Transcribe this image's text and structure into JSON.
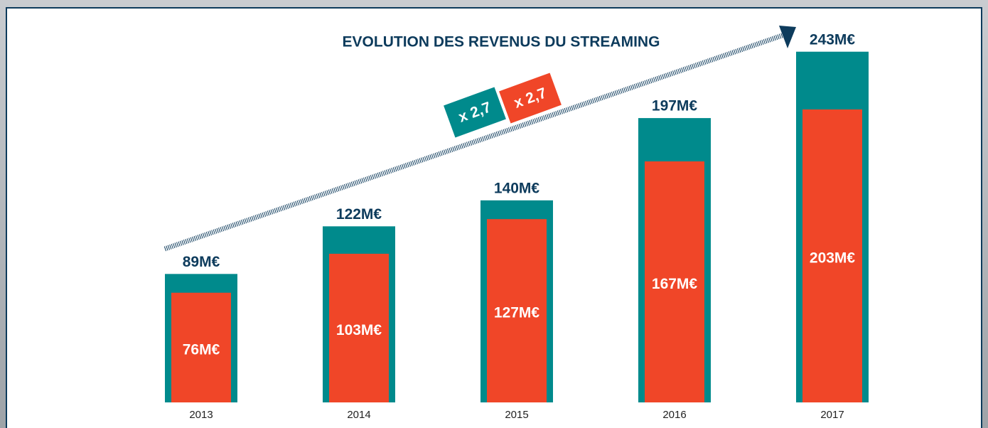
{
  "chart_data": {
    "type": "overlap_bar",
    "title": "EVOLUTION DES REVENUS DU STREAMING",
    "categories": [
      "2013",
      "2014",
      "2015",
      "2016",
      "2017"
    ],
    "series": [
      {
        "color": "#008a8c",
        "values": [
          89,
          122,
          140,
          197,
          243
        ],
        "value_labels": [
          "89M€",
          "122M€",
          "140M€",
          "197M€",
          "243M€"
        ]
      },
      {
        "color": "#f04628",
        "values": [
          76,
          103,
          127,
          167,
          203
        ],
        "value_labels": [
          "76M€",
          "103M€",
          "127M€",
          "167M€",
          "203M€"
        ]
      }
    ],
    "annotations": [
      "x 2,7",
      "x 2,7"
    ]
  }
}
